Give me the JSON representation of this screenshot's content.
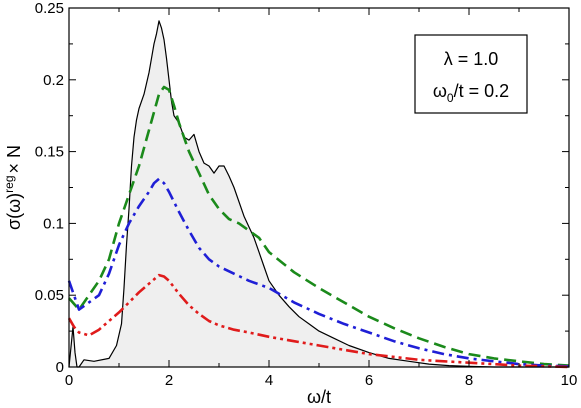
{
  "chart_data": {
    "type": "line",
    "xlabel": "ω/t",
    "ylabel": {
      "base": "σ(ω)",
      "sup": "reg",
      "suffix": "× N"
    },
    "xlim": [
      0,
      10
    ],
    "ylim": [
      0,
      0.25
    ],
    "x_ticks": [
      0,
      2,
      4,
      6,
      8,
      10
    ],
    "y_ticks": [
      0,
      0.05,
      0.1,
      0.15,
      0.2,
      0.25
    ],
    "x_tick_labels": [
      "0",
      "2",
      "4",
      "6",
      "8",
      "10"
    ],
    "y_tick_labels": [
      "0",
      "0.05",
      "0.1",
      "0.15",
      "0.2",
      "0.25"
    ],
    "grid": false,
    "annotation_box": {
      "position": "top-right",
      "lines": [
        {
          "text": "λ = 1.0"
        },
        {
          "text": "ω",
          "sub": "0",
          "rest": "/t = 0.2"
        }
      ]
    },
    "series": [
      {
        "style": "filled-solid",
        "color": "#000000",
        "fill": "#efefef",
        "x": [
          0,
          0.08,
          0.12,
          0.16,
          0.2,
          0.3,
          0.5,
          0.8,
          0.95,
          1.05,
          1.1,
          1.15,
          1.2,
          1.25,
          1.3,
          1.35,
          1.4,
          1.5,
          1.6,
          1.65,
          1.7,
          1.75,
          1.8,
          1.85,
          1.9,
          1.95,
          2.0,
          2.05,
          2.1,
          2.2,
          2.3,
          2.4,
          2.5,
          2.6,
          2.7,
          2.8,
          2.9,
          3.0,
          3.1,
          3.2,
          3.3,
          3.5,
          3.7,
          3.8,
          3.9,
          4.0,
          4.2,
          4.4,
          4.6,
          4.8,
          5.0,
          5.3,
          5.6,
          6.0,
          6.4,
          6.8,
          7.2,
          7.6,
          8.0,
          8.5,
          9.0,
          10.0
        ],
        "y": [
          0.0,
          0.028,
          0.01,
          0.0,
          0.0,
          0.005,
          0.004,
          0.006,
          0.015,
          0.03,
          0.055,
          0.085,
          0.11,
          0.14,
          0.16,
          0.172,
          0.18,
          0.19,
          0.205,
          0.215,
          0.225,
          0.232,
          0.241,
          0.236,
          0.228,
          0.215,
          0.2,
          0.185,
          0.175,
          0.17,
          0.16,
          0.158,
          0.162,
          0.15,
          0.142,
          0.14,
          0.135,
          0.14,
          0.14,
          0.133,
          0.125,
          0.105,
          0.09,
          0.08,
          0.07,
          0.06,
          0.05,
          0.042,
          0.035,
          0.03,
          0.025,
          0.02,
          0.015,
          0.01,
          0.006,
          0.004,
          0.002,
          0.001,
          0.0005,
          0.0,
          0.0,
          0.0
        ]
      },
      {
        "style": "dash",
        "color": "#1b8a1b",
        "x": [
          0,
          0.2,
          0.4,
          0.6,
          0.8,
          1.0,
          1.2,
          1.4,
          1.6,
          1.8,
          1.9,
          2.0,
          2.1,
          2.2,
          2.4,
          2.6,
          2.8,
          3.0,
          3.2,
          3.4,
          3.6,
          3.8,
          4.0,
          4.5,
          5.0,
          5.5,
          6.0,
          6.5,
          7.0,
          7.5,
          8.0,
          8.5,
          9.0,
          9.5,
          10.0
        ],
        "y": [
          0.048,
          0.04,
          0.05,
          0.06,
          0.075,
          0.1,
          0.12,
          0.14,
          0.165,
          0.19,
          0.195,
          0.193,
          0.182,
          0.17,
          0.15,
          0.135,
          0.12,
          0.11,
          0.103,
          0.1,
          0.095,
          0.09,
          0.08,
          0.066,
          0.055,
          0.045,
          0.035,
          0.027,
          0.02,
          0.014,
          0.009,
          0.006,
          0.004,
          0.002,
          0.001
        ]
      },
      {
        "style": "dash-dot",
        "color": "#1f1fd6",
        "x": [
          0,
          0.2,
          0.4,
          0.6,
          0.8,
          1.0,
          1.2,
          1.4,
          1.6,
          1.7,
          1.8,
          1.9,
          2.0,
          2.2,
          2.4,
          2.6,
          2.8,
          3.0,
          3.3,
          3.6,
          4.0,
          4.5,
          5.0,
          5.5,
          6.0,
          6.5,
          7.0,
          7.5,
          8.0,
          8.5,
          9.0,
          9.5,
          10.0
        ],
        "y": [
          0.06,
          0.04,
          0.045,
          0.05,
          0.065,
          0.085,
          0.1,
          0.112,
          0.122,
          0.128,
          0.131,
          0.128,
          0.122,
          0.108,
          0.095,
          0.083,
          0.075,
          0.07,
          0.065,
          0.06,
          0.055,
          0.045,
          0.037,
          0.03,
          0.024,
          0.018,
          0.013,
          0.009,
          0.006,
          0.004,
          0.002,
          0.001,
          0.0005
        ]
      },
      {
        "style": "dash-dot-dot",
        "color": "#e01b1b",
        "x": [
          0,
          0.1,
          0.2,
          0.4,
          0.6,
          0.8,
          1.0,
          1.2,
          1.4,
          1.6,
          1.8,
          1.9,
          2.0,
          2.2,
          2.4,
          2.6,
          2.8,
          3.0,
          3.3,
          3.6,
          4.0,
          4.5,
          5.0,
          5.5,
          6.0,
          6.5,
          7.0,
          7.5,
          8.0,
          8.5,
          9.0,
          9.5,
          10.0
        ],
        "y": [
          0.034,
          0.028,
          0.024,
          0.022,
          0.026,
          0.032,
          0.038,
          0.045,
          0.052,
          0.058,
          0.064,
          0.063,
          0.06,
          0.051,
          0.043,
          0.037,
          0.032,
          0.029,
          0.026,
          0.024,
          0.021,
          0.018,
          0.015,
          0.012,
          0.009,
          0.007,
          0.005,
          0.004,
          0.003,
          0.002,
          0.001,
          0.0005,
          0.0
        ]
      }
    ]
  }
}
